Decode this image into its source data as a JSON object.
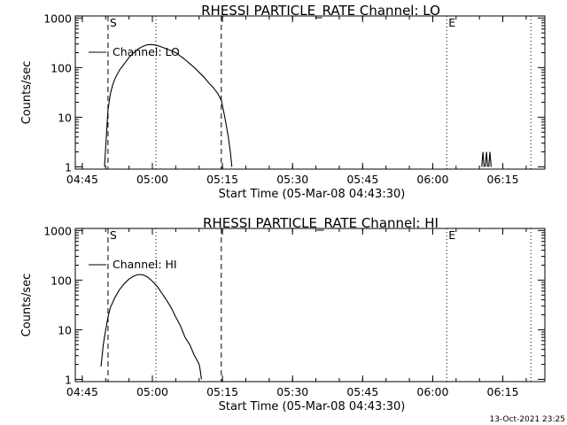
{
  "timestamp": "13-Oct-2021 23:25",
  "chart_data": [
    {
      "type": "line",
      "title": "RHESSI PARTICLE_RATE Channel: LO",
      "xlabel": "Start Time (05-Mar-08 04:43:30)",
      "ylabel": "Counts/sec",
      "yscale": "log",
      "ylim": [
        0.9,
        1100
      ],
      "xlim": [
        "04:43:30",
        "06:24:00"
      ],
      "x_ticks": [
        "04:45",
        "05:00",
        "05:15",
        "05:30",
        "05:45",
        "06:00",
        "06:15"
      ],
      "y_ticks": [
        "1",
        "10",
        "100",
        "1000"
      ],
      "legend": {
        "label": "Channel: LO",
        "position": "top-left"
      },
      "markers": [
        {
          "time": "04:50:30",
          "label": "S",
          "style": "dashed"
        },
        {
          "time": "05:14:45",
          "label": "",
          "style": "dashed"
        },
        {
          "time": "05:00:45",
          "label": "",
          "style": "dotted"
        },
        {
          "time": "06:03:00",
          "label": "E",
          "style": "dotted"
        },
        {
          "time": "06:21:00",
          "label": "",
          "style": "dotted"
        }
      ],
      "series": [
        {
          "name": "Channel: LO",
          "segments": [
            {
              "x": [
                "04:49:45",
                "04:50:00",
                "04:50:15",
                "04:50:30",
                "04:51:00",
                "04:51:30",
                "04:52:00",
                "04:53:00",
                "04:54:00",
                "04:55:00",
                "04:56:00",
                "04:57:00",
                "04:58:00",
                "04:59:00",
                "05:00:00",
                "05:01:00",
                "05:02:00",
                "05:03:00",
                "05:04:00",
                "05:05:00",
                "05:06:00",
                "05:07:00",
                "05:08:00",
                "05:09:00",
                "05:10:00",
                "05:11:00",
                "05:12:00",
                "05:13:00",
                "05:14:00",
                "05:14:45",
                "05:15:30",
                "05:16:15",
                "05:16:45",
                "05:17:00"
              ],
              "y": [
                1,
                2.5,
                6,
                14,
                30,
                45,
                60,
                90,
                120,
                160,
                200,
                240,
                270,
                290,
                290,
                280,
                260,
                240,
                220,
                200,
                170,
                145,
                120,
                100,
                80,
                65,
                50,
                40,
                30,
                22,
                10,
                4,
                1.8,
                1
              ]
            },
            {
              "x": [
                "06:10:30",
                "06:10:45",
                "06:11:00"
              ],
              "y": [
                1,
                2,
                1
              ]
            },
            {
              "x": [
                "06:11:15",
                "06:11:30",
                "06:11:45"
              ],
              "y": [
                1,
                2,
                1
              ]
            },
            {
              "x": [
                "06:12:00",
                "06:12:15",
                "06:12:30"
              ],
              "y": [
                1,
                2,
                1
              ]
            }
          ]
        }
      ]
    },
    {
      "type": "line",
      "title": "RHESSI PARTICLE_RATE Channel: HI",
      "xlabel": "Start Time (05-Mar-08 04:43:30)",
      "ylabel": "Counts/sec",
      "yscale": "log",
      "ylim": [
        0.9,
        1100
      ],
      "xlim": [
        "04:43:30",
        "06:24:00"
      ],
      "x_ticks": [
        "04:45",
        "05:00",
        "05:15",
        "05:30",
        "05:45",
        "06:00",
        "06:15"
      ],
      "y_ticks": [
        "1",
        "10",
        "100",
        "1000"
      ],
      "legend": {
        "label": "Channel: HI",
        "position": "top-left"
      },
      "markers": [
        {
          "time": "04:50:30",
          "label": "S",
          "style": "dashed"
        },
        {
          "time": "05:14:45",
          "label": "",
          "style": "dashed"
        },
        {
          "time": "05:00:45",
          "label": "",
          "style": "dotted"
        },
        {
          "time": "06:03:00",
          "label": "E",
          "style": "dotted"
        },
        {
          "time": "06:21:00",
          "label": "",
          "style": "dotted"
        }
      ],
      "series": [
        {
          "name": "Channel: HI",
          "segments": [
            {
              "x": [
                "04:49:00",
                "04:49:30",
                "04:50:00",
                "04:50:30",
                "04:51:00",
                "04:52:00",
                "04:53:00",
                "04:54:00",
                "04:55:00",
                "04:56:00",
                "04:57:00",
                "04:58:00",
                "04:59:00",
                "05:00:00",
                "05:01:00",
                "05:02:00",
                "05:03:00",
                "05:04:00",
                "05:05:00",
                "05:06:00",
                "05:07:00",
                "05:08:00",
                "05:09:00",
                "05:09:30",
                "05:10:00",
                "05:10:15",
                "05:10:30"
              ],
              "y": [
                1.8,
                5,
                10,
                18,
                28,
                45,
                65,
                85,
                105,
                120,
                130,
                128,
                115,
                95,
                75,
                55,
                40,
                28,
                18,
                12,
                7,
                5,
                3,
                2.5,
                2,
                1.5,
                1
              ]
            }
          ]
        }
      ]
    }
  ]
}
